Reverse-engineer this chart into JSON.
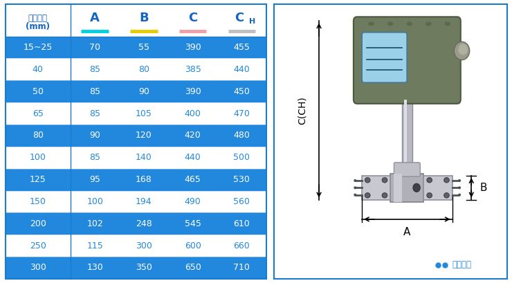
{
  "title_col": "仪表口径\n(mm)",
  "col_labels_raw": [
    "A",
    "B",
    "C",
    "CH"
  ],
  "col_colors": [
    "#00d0e0",
    "#e8cc00",
    "#f0a0a8",
    "#c0c0c0"
  ],
  "header_text_color": "#1565c0",
  "rows": [
    {
      "label": "15~25",
      "values": [
        "70",
        "55",
        "390",
        "455"
      ],
      "dark": true
    },
    {
      "label": "40",
      "values": [
        "85",
        "80",
        "385",
        "440"
      ],
      "dark": false
    },
    {
      "label": "50",
      "values": [
        "85",
        "90",
        "390",
        "450"
      ],
      "dark": true
    },
    {
      "label": "65",
      "values": [
        "85",
        "105",
        "400",
        "470"
      ],
      "dark": false
    },
    {
      "label": "80",
      "values": [
        "90",
        "120",
        "420",
        "480"
      ],
      "dark": true
    },
    {
      "label": "100",
      "values": [
        "85",
        "140",
        "440",
        "500"
      ],
      "dark": false
    },
    {
      "label": "125",
      "values": [
        "95",
        "168",
        "465",
        "530"
      ],
      "dark": true
    },
    {
      "label": "150",
      "values": [
        "100",
        "194",
        "490",
        "560"
      ],
      "dark": false
    },
    {
      "label": "200",
      "values": [
        "102",
        "248",
        "545",
        "610"
      ],
      "dark": true
    },
    {
      "label": "250",
      "values": [
        "115",
        "300",
        "600",
        "660"
      ],
      "dark": false
    },
    {
      "label": "300",
      "values": [
        "130",
        "350",
        "650",
        "710"
      ],
      "dark": true
    }
  ],
  "dark_bg": "#2288dd",
  "light_bg": "#ffffff",
  "border_color": "#1a7acc",
  "white_text": "#ffffff",
  "blue_text": "#2288dd",
  "annotation_text": "常规仪表",
  "annotation_color": "#2288dd",
  "dim_C": "C(CH)",
  "dim_A": "A",
  "dim_B": "B"
}
